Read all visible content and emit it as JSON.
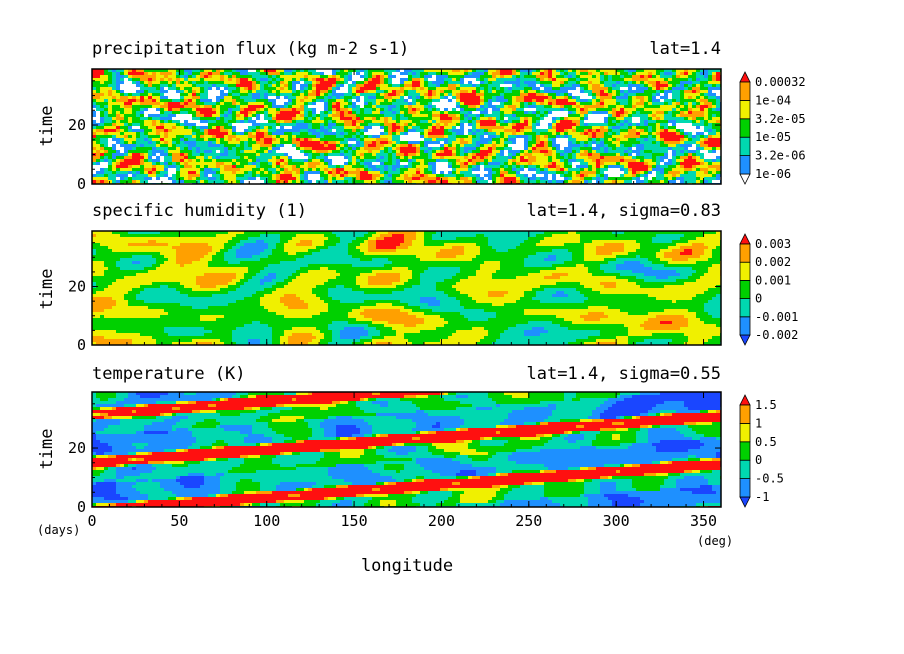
{
  "chart_data": [
    {
      "type": "heatmap",
      "title": "precipitation flux (kg m-2 s-1)",
      "subtitle": "lat=1.4",
      "ylabel": "time",
      "xlim": [
        0,
        360
      ],
      "ylim": [
        0,
        39
      ],
      "yticks": [
        0,
        20
      ],
      "colorbar": {
        "labels": [
          "1e-06",
          "3.2e-06",
          "1e-05",
          "3.2e-05",
          "1e-04",
          "0.00032"
        ],
        "colors": [
          "#ffffff",
          "#1e90ff",
          "#00d8b0",
          "#00d000",
          "#f0f000",
          "#ffa000",
          "#ff1010"
        ],
        "extend": "both"
      },
      "pattern": "patchy",
      "prop_speed_deg_per_day": 0
    },
    {
      "type": "heatmap",
      "title": "specific humidity (1)",
      "subtitle": "lat=1.4, sigma=0.83",
      "ylabel": "time",
      "xlim": [
        0,
        360
      ],
      "ylim": [
        0,
        39
      ],
      "yticks": [
        0,
        20
      ],
      "colorbar": {
        "labels": [
          "-0.002",
          "-0.001",
          "0",
          "0.001",
          "0.002",
          "0.003"
        ],
        "colors": [
          "#1a46ff",
          "#1e90ff",
          "#00d8b0",
          "#00d000",
          "#f0f000",
          "#ffa000",
          "#ff1010"
        ],
        "extend": "both"
      },
      "pattern": "smooth",
      "prop_speed_deg_per_day": 6
    },
    {
      "type": "heatmap",
      "title": "temperature (K)",
      "subtitle": "lat=1.4, sigma=0.55",
      "ylabel": "time",
      "xlabel": "longitude",
      "xunit": "(deg)",
      "yunit": "(days)",
      "xlim": [
        0,
        360
      ],
      "ylim": [
        0,
        39
      ],
      "xticks": [
        0,
        50,
        100,
        150,
        200,
        250,
        300,
        350
      ],
      "yticks": [
        0,
        20
      ],
      "colorbar": {
        "labels": [
          "-1",
          "-0.5",
          "0",
          "0.5",
          "1",
          "1.5"
        ],
        "colors": [
          "#1a46ff",
          "#1e90ff",
          "#00d8b0",
          "#00d000",
          "#f0f000",
          "#ffa000",
          "#ff1010"
        ],
        "extend": "both"
      },
      "pattern": "bands",
      "band_speed_deg_per_day": 23,
      "band_period_days": 16
    }
  ]
}
